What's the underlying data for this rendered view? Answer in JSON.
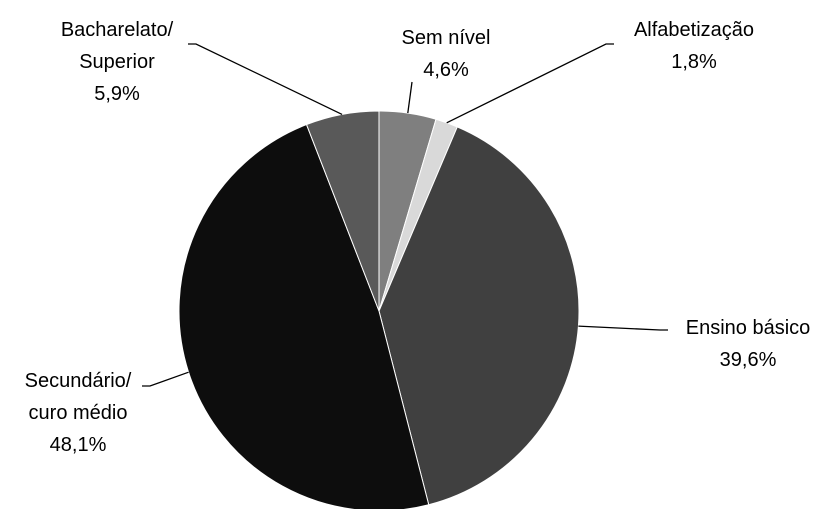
{
  "chart_data": {
    "type": "pie",
    "start_angle_deg": 0,
    "direction": "clockwise",
    "slices": [
      {
        "label_lines": [
          "Sem nível"
        ],
        "value_label": "4,6%",
        "value": 4.6,
        "color": "#7f7f7f"
      },
      {
        "label_lines": [
          "Alfabetização"
        ],
        "value_label": "1,8%",
        "value": 1.8,
        "color": "#d9d9d9"
      },
      {
        "label_lines": [
          "Ensino básico"
        ],
        "value_label": "39,6%",
        "value": 39.6,
        "color": "#404040"
      },
      {
        "label_lines": [
          "Secundário/",
          "curo médio"
        ],
        "value_label": "48,1%",
        "value": 48.1,
        "color": "#0d0d0d"
      },
      {
        "label_lines": [
          "Bacharelato/",
          "Superior"
        ],
        "value_label": "5,9%",
        "value": 5.9,
        "color": "#595959"
      }
    ]
  }
}
